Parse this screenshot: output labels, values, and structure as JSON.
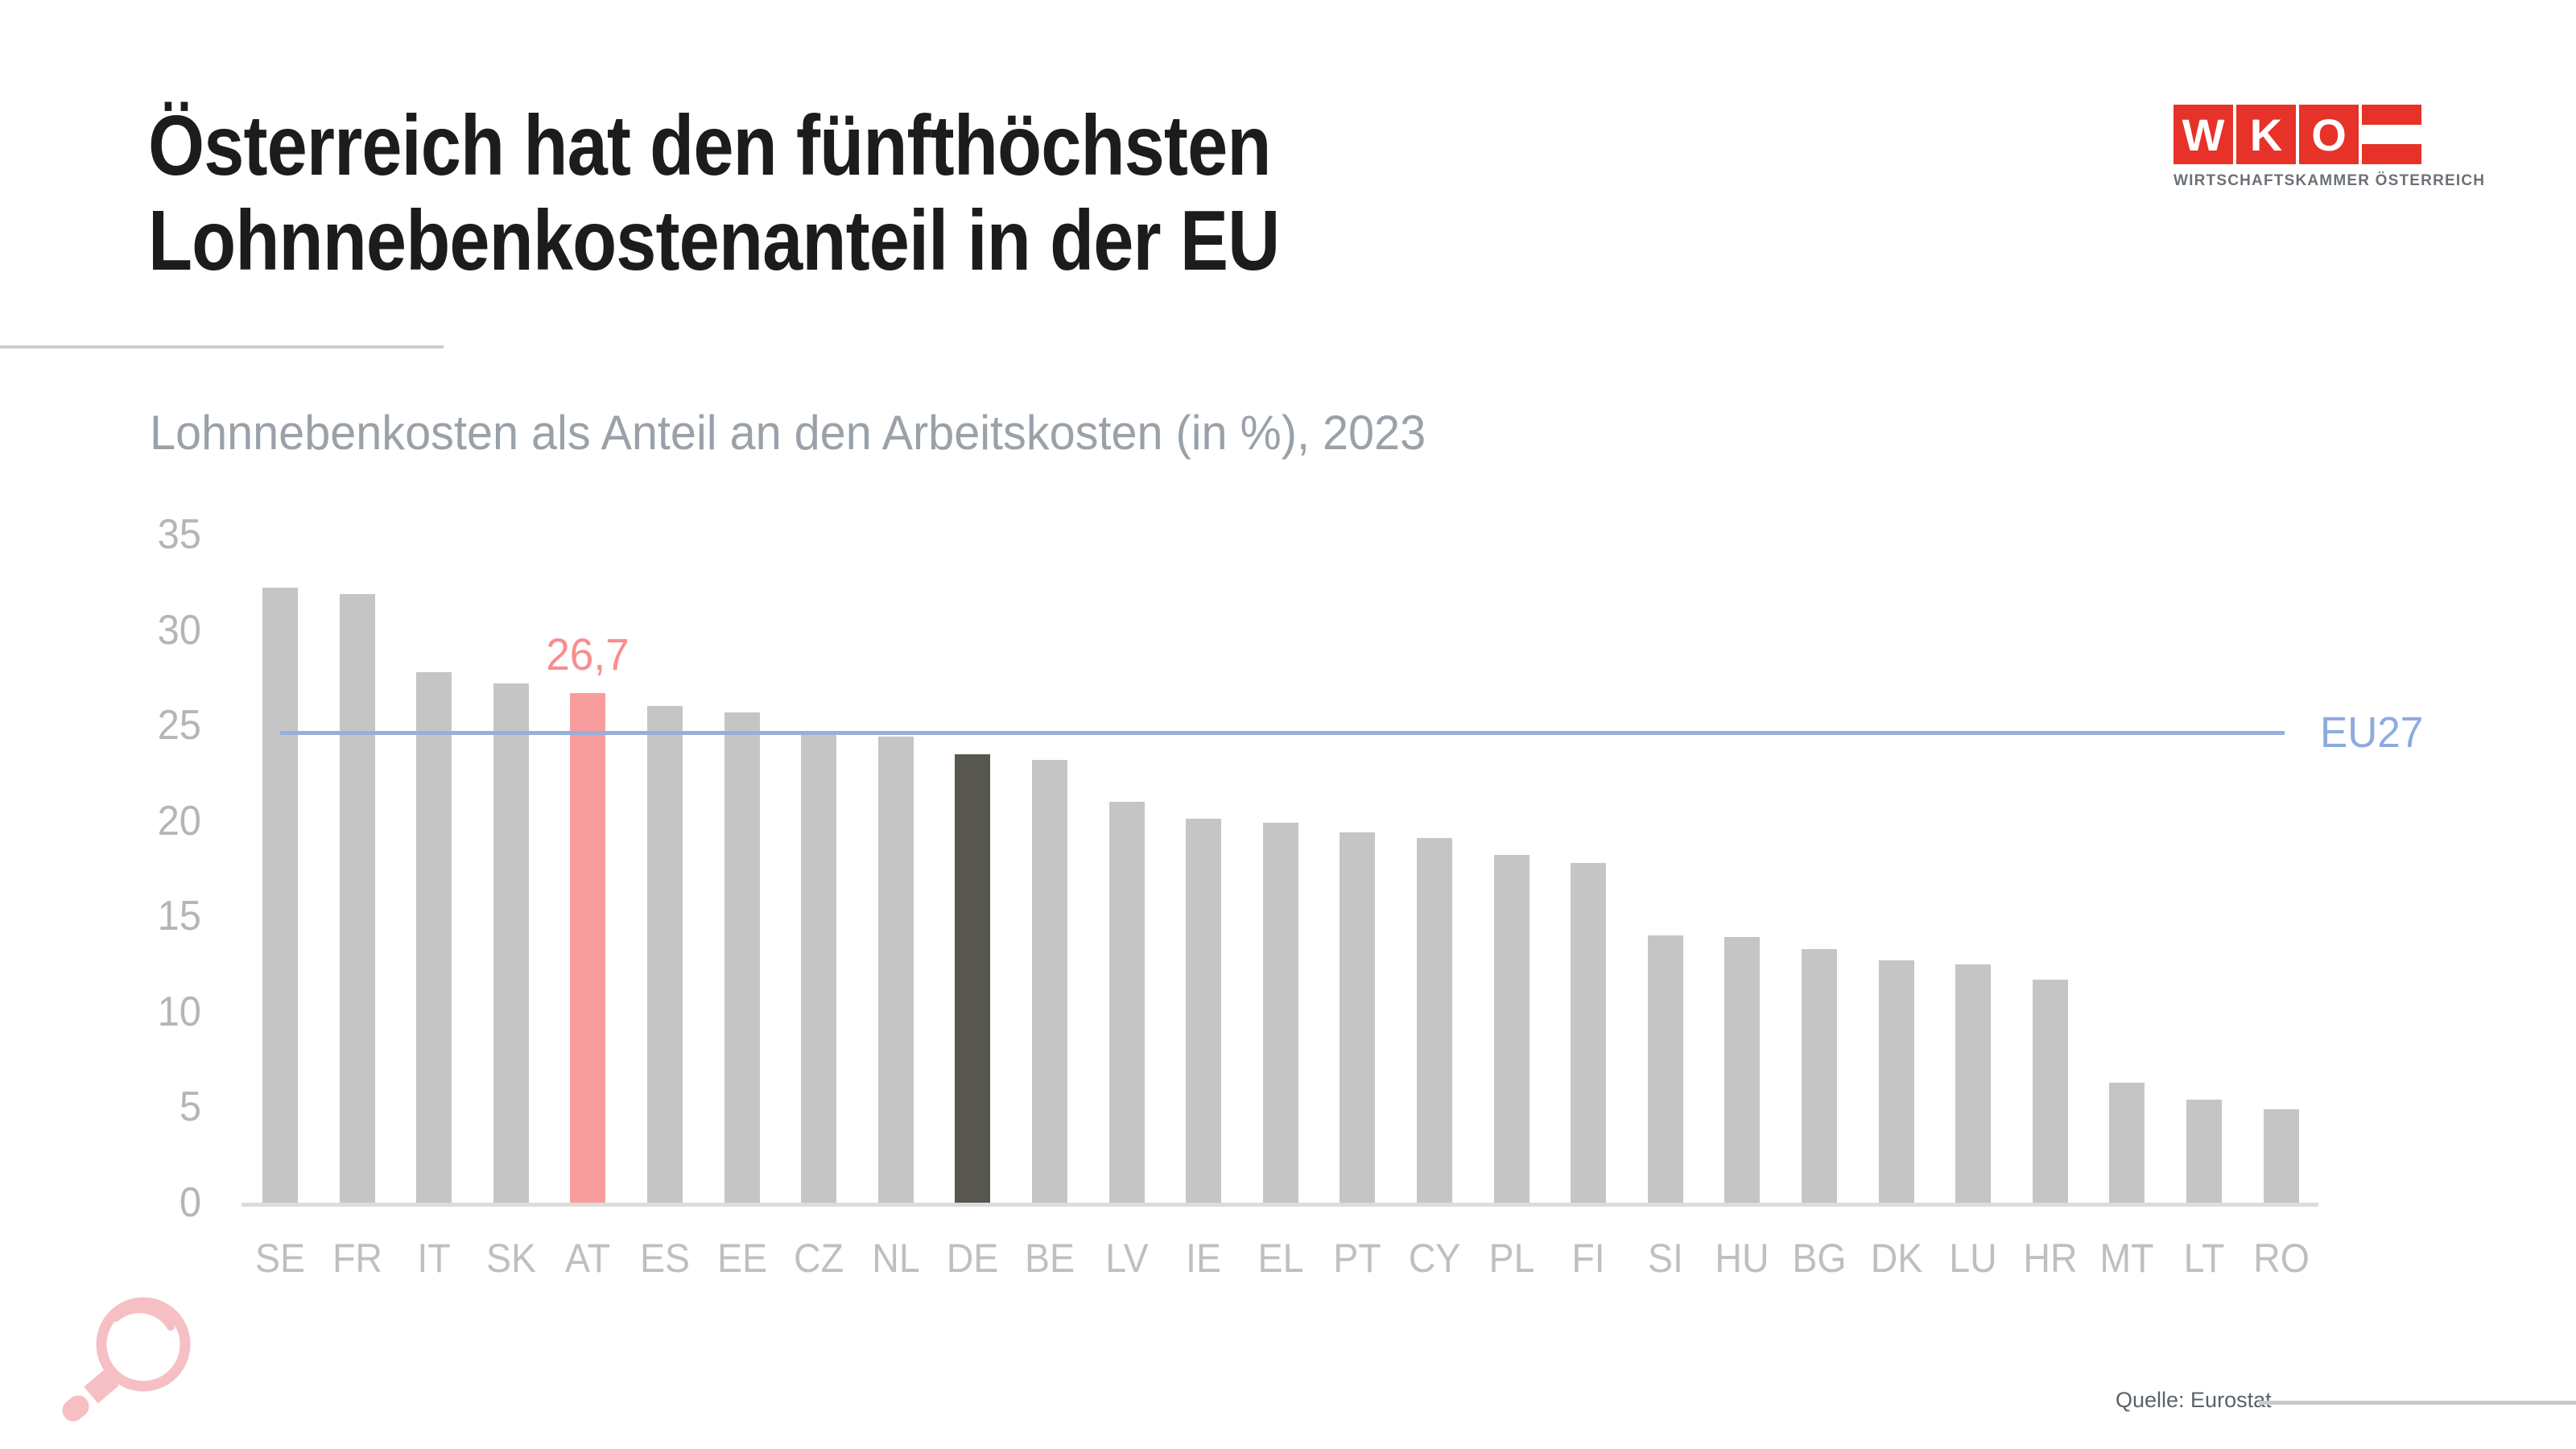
{
  "header": {
    "title_line1": "Österreich hat den fünfthöchsten",
    "title_line2": "Lohnnebenkostenanteil in der EU",
    "subtitle": "Lohnnebenkosten als Anteil an den Arbeitskosten (in %), 2023"
  },
  "logo": {
    "letters": [
      "W",
      "K",
      "O"
    ],
    "subtext": "WIRTSCHAFTSKAMMER ÖSTERREICH",
    "brand_red": "#e63229",
    "flag_white": "#ffffff"
  },
  "chart_data": {
    "type": "bar",
    "title": "Lohnnebenkosten als Anteil an den Arbeitskosten (in %), 2023",
    "categories": [
      "SE",
      "FR",
      "IT",
      "SK",
      "AT",
      "ES",
      "EE",
      "CZ",
      "NL",
      "DE",
      "BE",
      "LV",
      "IE",
      "EL",
      "PT",
      "CY",
      "PL",
      "FI",
      "SI",
      "HU",
      "BG",
      "DK",
      "LU",
      "HR",
      "MT",
      "LT",
      "RO"
    ],
    "values": [
      32.2,
      31.9,
      27.8,
      27.2,
      26.7,
      26.0,
      25.7,
      24.6,
      24.4,
      23.5,
      23.2,
      21.0,
      20.1,
      19.9,
      19.4,
      19.1,
      18.2,
      17.8,
      14.0,
      13.9,
      13.3,
      12.7,
      12.5,
      11.7,
      6.3,
      5.4,
      4.9
    ],
    "bar_color": "#c5c5c5",
    "highlight": {
      "country": "AT",
      "value_label": "26,7",
      "bar_color": "#f99c9d",
      "label_color": "#f88d90"
    },
    "secondary_highlight": {
      "country": "DE",
      "bar_color": "#57564f"
    },
    "reference_line": {
      "label": "EU27",
      "value": 24.7,
      "color": "#97afdd",
      "label_color": "#8fabde"
    },
    "y_ticks": [
      35,
      30,
      25,
      20,
      15,
      10,
      5,
      0
    ],
    "ylim": [
      0,
      35
    ],
    "xlabel": "",
    "ylabel": "",
    "grid": "off",
    "legend_position": "right-of-reference-line"
  },
  "footer": {
    "source": "Quelle: Eurostat"
  },
  "icons": {
    "magnifier_color": "#f6bfc3"
  }
}
